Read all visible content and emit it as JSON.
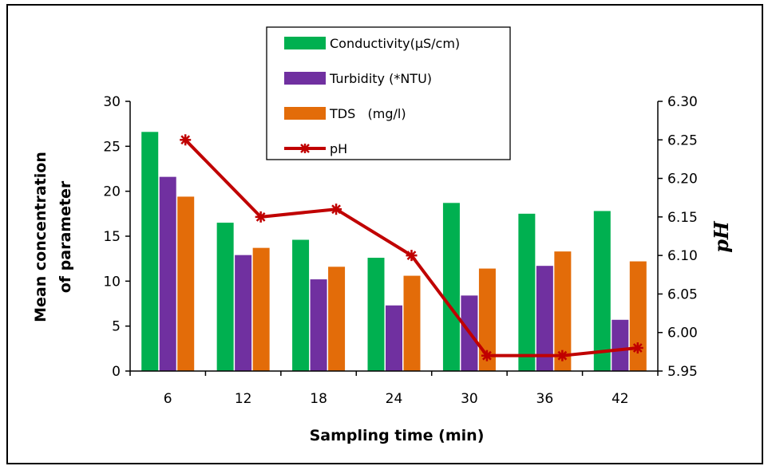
{
  "chart_data": {
    "type": "bar",
    "categories": [
      "6",
      "12",
      "18",
      "24",
      "30",
      "36",
      "42"
    ],
    "series": [
      {
        "name": "Conductivity(µS/cm)",
        "color": "#00b050",
        "axis": "left",
        "values": [
          26.6,
          16.5,
          14.6,
          12.6,
          18.7,
          17.5,
          17.8
        ]
      },
      {
        "name": "Turbidity (*NTU)",
        "color": "#7030a0",
        "axis": "left",
        "values": [
          21.6,
          12.9,
          10.2,
          7.3,
          8.4,
          11.7,
          5.7
        ]
      },
      {
        "name": "TDS   (mg/l)",
        "color": "#e36c09",
        "axis": "left",
        "values": [
          19.4,
          13.7,
          11.6,
          10.6,
          11.4,
          13.3,
          12.2
        ]
      }
    ],
    "line_series": {
      "name": "pH",
      "color": "#c00000",
      "axis": "right",
      "marker": "asterisk",
      "values": [
        6.25,
        6.15,
        6.16,
        6.1,
        5.97,
        5.97,
        5.98
      ],
      "category_indices": [
        0,
        1,
        2,
        3,
        4,
        5,
        6
      ]
    },
    "xlabel": "Sampling time (min)",
    "ylabel_lines": [
      "Mean concentration",
      "of parameter"
    ],
    "y2label": "pH",
    "ylim": [
      0,
      30
    ],
    "yticks": [
      "0",
      "5",
      "10",
      "15",
      "20",
      "25",
      "30"
    ],
    "y2lim": [
      5.95,
      6.3
    ],
    "y2ticks": [
      "5.95",
      "6.00",
      "6.05",
      "6.10",
      "6.15",
      "6.20",
      "6.25",
      "6.30"
    ],
    "legend_position": "top-center",
    "grid": false
  }
}
